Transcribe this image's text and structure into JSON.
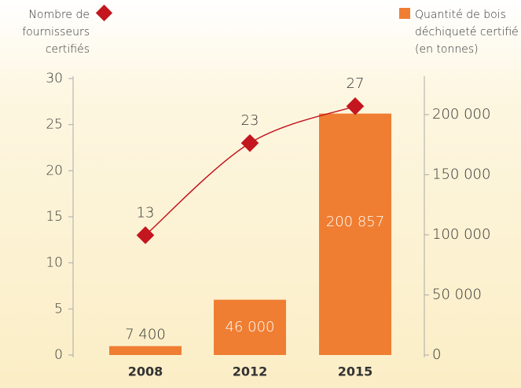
{
  "chart_data": {
    "type": "bar-line",
    "categories": [
      "2008",
      "2012",
      "2015"
    ],
    "series": [
      {
        "name": "Nombre de fournisseurs certifiés",
        "type": "line",
        "color": "#c3161f",
        "values": [
          13,
          23,
          27
        ]
      },
      {
        "name": "Quantité de bois déchiqueté certifié (en tonnes)",
        "type": "bar",
        "axis": "y2",
        "color": "#ef7e32",
        "values": [
          7400,
          46000,
          200857
        ],
        "value_labels": [
          "7 400",
          "46 000",
          "200 857"
        ]
      }
    ],
    "ylim": [
      0,
      30
    ],
    "yticks": [
      0,
      5,
      10,
      15,
      20,
      25,
      30
    ],
    "y2lim": [
      0,
      230000
    ],
    "y2ticks": [
      0,
      {
        "value": 50000,
        "label": "50 000"
      },
      {
        "value": 100000,
        "label": "100 000"
      },
      {
        "value": 150000,
        "label": "150 000"
      },
      {
        "value": 200000,
        "label": "200 000"
      }
    ]
  }
}
